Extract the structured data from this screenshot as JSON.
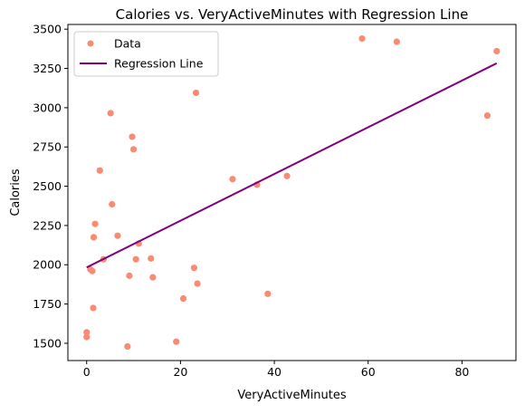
{
  "chart_data": {
    "type": "scatter",
    "title": "Calories vs. VeryActiveMinutes with Regression Line",
    "xlabel": "VeryActiveMinutes",
    "ylabel": "Calories",
    "xlim": [
      -4,
      91.5
    ],
    "ylim": [
      1390,
      3530
    ],
    "xticks": [
      0,
      20,
      40,
      60,
      80
    ],
    "yticks": [
      1500,
      1750,
      2000,
      2250,
      2500,
      2750,
      3000,
      3250,
      3500
    ],
    "grid": false,
    "legend_position": "top-left",
    "series": [
      {
        "name": "Data",
        "kind": "scatter",
        "color": "#fa8a72",
        "points": [
          {
            "x": 0,
            "y": 1570
          },
          {
            "x": 0,
            "y": 1540
          },
          {
            "x": 0.8,
            "y": 1970
          },
          {
            "x": 1.2,
            "y": 1960
          },
          {
            "x": 1.4,
            "y": 1725
          },
          {
            "x": 1.5,
            "y": 2175
          },
          {
            "x": 1.8,
            "y": 2260
          },
          {
            "x": 2.8,
            "y": 2600
          },
          {
            "x": 3.6,
            "y": 2035
          },
          {
            "x": 5.1,
            "y": 2965
          },
          {
            "x": 5.4,
            "y": 2385
          },
          {
            "x": 6.6,
            "y": 2185
          },
          {
            "x": 8.7,
            "y": 1480
          },
          {
            "x": 9.1,
            "y": 1930
          },
          {
            "x": 9.7,
            "y": 2815
          },
          {
            "x": 10,
            "y": 2735
          },
          {
            "x": 10.5,
            "y": 2035
          },
          {
            "x": 11.1,
            "y": 2135
          },
          {
            "x": 13.7,
            "y": 2040
          },
          {
            "x": 14.1,
            "y": 1920
          },
          {
            "x": 19.1,
            "y": 1510
          },
          {
            "x": 20.6,
            "y": 1785
          },
          {
            "x": 22.9,
            "y": 1980
          },
          {
            "x": 23.3,
            "y": 3095
          },
          {
            "x": 23.6,
            "y": 1880
          },
          {
            "x": 31.1,
            "y": 2545
          },
          {
            "x": 36.3,
            "y": 2510
          },
          {
            "x": 38.6,
            "y": 1815
          },
          {
            "x": 42.7,
            "y": 2565
          },
          {
            "x": 58.7,
            "y": 3440
          },
          {
            "x": 66.1,
            "y": 3420
          },
          {
            "x": 85.4,
            "y": 2950
          },
          {
            "x": 87.4,
            "y": 3360
          }
        ]
      },
      {
        "name": "Regression Line",
        "kind": "line",
        "color": "#800080",
        "x": [
          0,
          87.4
        ],
        "y": [
          1983,
          3283
        ]
      }
    ]
  }
}
